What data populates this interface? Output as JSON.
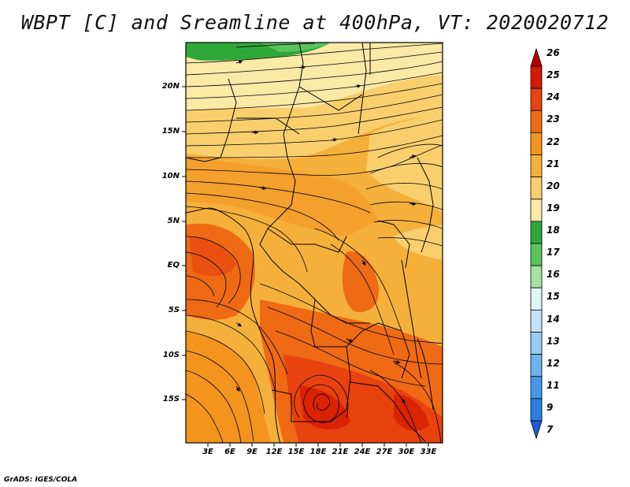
{
  "title": "WBPT [C] and Sreamline at 400hPa, VT: 2020020712",
  "map": {
    "lat_labels": [
      "20N",
      "15N",
      "10N",
      "5N",
      "EQ",
      "5S",
      "10S",
      "15S"
    ],
    "lon_labels": [
      "3E",
      "6E",
      "9E",
      "12E",
      "15E",
      "18E",
      "21E",
      "24E",
      "27E",
      "30E",
      "33E"
    ]
  },
  "colorbar": {
    "levels": [
      "26",
      "25",
      "24",
      "23",
      "22",
      "21",
      "20",
      "19",
      "18",
      "17",
      "16",
      "15",
      "14",
      "13",
      "12",
      "11",
      "9",
      "7"
    ],
    "colors": [
      "#b40000",
      "#d41a00",
      "#e8420f",
      "#ee6a14",
      "#f3941f",
      "#f5b03c",
      "#f9cf6e",
      "#fbe9a6",
      "#2fa83a",
      "#59c45c",
      "#a4e29e",
      "#def6f4",
      "#c4e2f8",
      "#99ccf5",
      "#6db3ef",
      "#4698e8",
      "#2d7ce0",
      "#1a5fd6"
    ]
  },
  "credit": "GrADS: IGES/COLA"
}
